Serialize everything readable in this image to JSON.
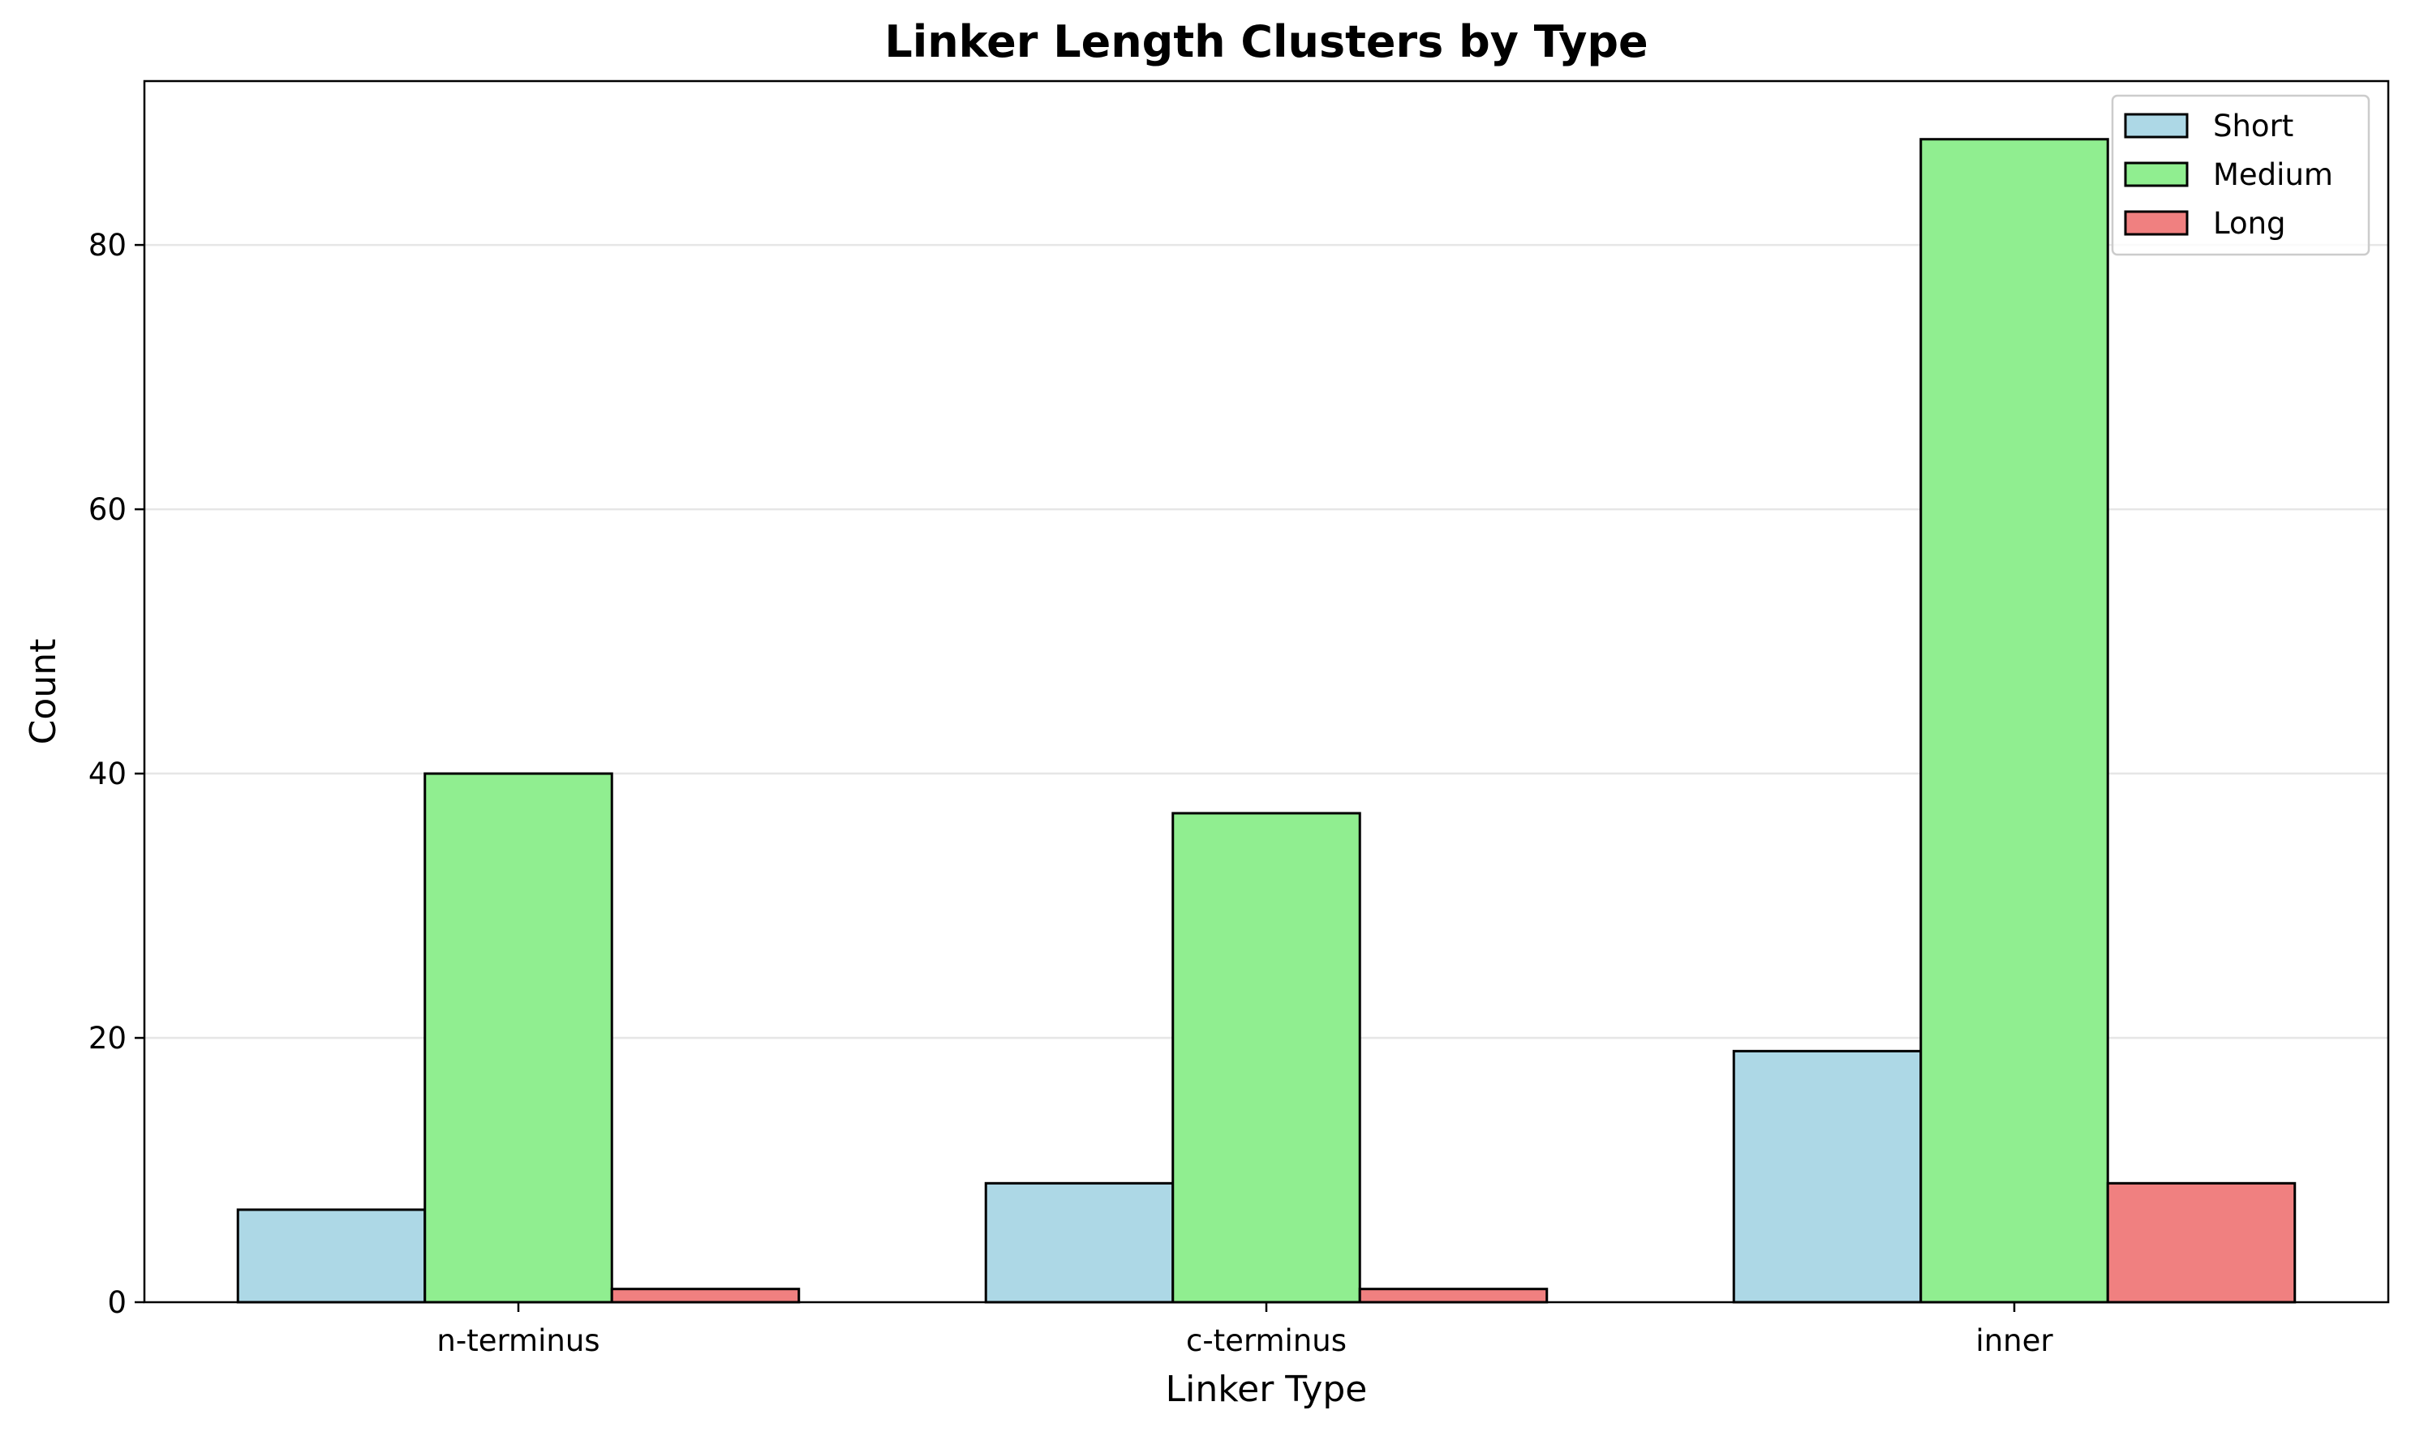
{
  "chart_data": {
    "type": "bar",
    "title": "Linker Length Clusters by Type",
    "xlabel": "Linker Type",
    "ylabel": "Count",
    "categories": [
      "n-terminus",
      "c-terminus",
      "inner"
    ],
    "series": [
      {
        "name": "Short",
        "values": [
          7,
          9,
          19
        ],
        "color": "#add8e6"
      },
      {
        "name": "Medium",
        "values": [
          40,
          37,
          88
        ],
        "color": "#90ee90"
      },
      {
        "name": "Long",
        "values": [
          1,
          1,
          9
        ],
        "color": "#f08080"
      }
    ],
    "ylim": [
      0,
      92.4
    ],
    "yticks": [
      0,
      20,
      40,
      60,
      80
    ],
    "grid": "y",
    "legend_position": "top-right"
  }
}
